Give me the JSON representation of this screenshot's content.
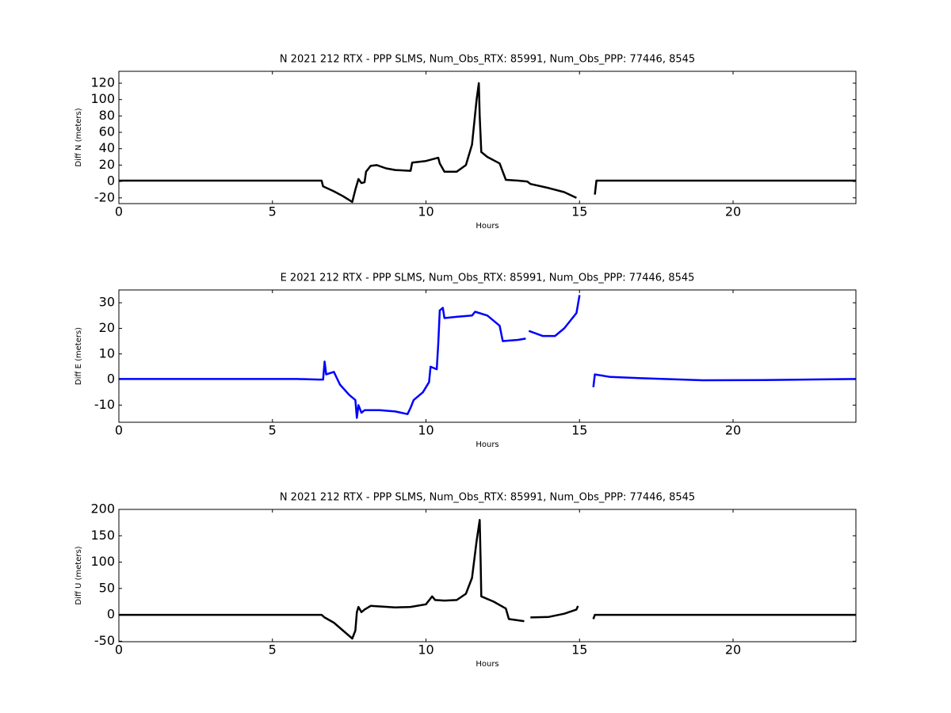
{
  "chart_data": [
    {
      "type": "line",
      "title": "N 2021 212 RTX - PPP  SLMS, Num_Obs_RTX: 85991, Num_Obs_PPP: 77446, 8545",
      "xlabel": "Hours",
      "ylabel": "Diff N (meters)",
      "color": "#000000",
      "xlim": [
        0,
        24
      ],
      "ylim": [
        -27,
        134.5
      ],
      "xticks": [
        0,
        5,
        10,
        15,
        20
      ],
      "yticks": [
        -20,
        0,
        20,
        40,
        60,
        80,
        100,
        120
      ],
      "x": [
        0,
        1,
        2,
        3,
        4,
        5,
        6,
        6.6,
        6.65,
        7.0,
        7.3,
        7.6,
        7.7,
        7.8,
        7.9,
        8.0,
        8.05,
        8.2,
        8.4,
        8.7,
        9.0,
        9.5,
        9.55,
        10.0,
        10.4,
        10.45,
        10.6,
        10.8,
        11.0,
        11.3,
        11.5,
        11.65,
        11.72,
        11.75,
        11.8,
        12.0,
        12.4,
        12.6,
        13.0,
        13.3,
        13.4,
        14.0,
        14.5,
        14.9,
        15.2,
        15.5,
        15.55,
        17,
        20,
        24
      ],
      "values": [
        1,
        1,
        1,
        1,
        1,
        1,
        1,
        1,
        -6,
        -12,
        -18,
        -25,
        -10,
        3,
        -2,
        -1,
        12,
        19,
        20,
        16,
        14,
        13,
        23,
        25,
        29,
        22,
        12,
        12,
        12,
        20,
        45,
        100,
        120,
        80,
        36,
        30,
        22,
        2,
        1,
        0,
        -3,
        -8,
        -13,
        -20,
        null,
        -16,
        1,
        1,
        1,
        1
      ]
    },
    {
      "type": "line",
      "title": "E 2021 212 RTX - PPP  SLMS, Num_Obs_RTX: 85991, Num_Obs_PPP: 77446, 8545",
      "xlabel": "Hours",
      "ylabel": "Diff E (meters)",
      "color": "#0000ff",
      "xlim": [
        0,
        24
      ],
      "ylim": [
        -16.7,
        35
      ],
      "xticks": [
        0,
        5,
        10,
        15,
        20
      ],
      "yticks": [
        -10,
        0,
        10,
        20,
        30
      ],
      "x": [
        0,
        2,
        4,
        5.8,
        6.5,
        6.65,
        6.7,
        6.75,
        7.0,
        7.2,
        7.5,
        7.7,
        7.75,
        7.8,
        7.9,
        8.0,
        8.5,
        9.0,
        9.4,
        9.5,
        9.6,
        9.9,
        10.1,
        10.15,
        10.35,
        10.4,
        10.45,
        10.55,
        10.6,
        11.0,
        11.5,
        11.6,
        12.0,
        12.4,
        12.5,
        13.0,
        13.25,
        13.3,
        13.35,
        13.8,
        14.2,
        14.5,
        14.9,
        15.0,
        15.2,
        15.45,
        15.5,
        16.0,
        17.0,
        19.0,
        21,
        24
      ],
      "values": [
        0.2,
        0.2,
        0.2,
        0.2,
        0,
        0,
        7,
        2,
        3,
        -2,
        -6,
        -8,
        -15,
        -10,
        -13,
        -12,
        -12,
        -12.5,
        -13.5,
        -11,
        -8,
        -5,
        -1,
        5,
        4,
        14,
        27,
        28,
        24,
        24.5,
        25,
        26.5,
        25,
        21,
        15,
        15.5,
        16,
        null,
        19,
        17,
        17,
        20,
        26,
        33,
        null,
        -3,
        2,
        1,
        0.5,
        -0.3,
        -0.2,
        0.2
      ]
    },
    {
      "type": "line",
      "title": "N 2021 212 RTX - PPP  SLMS, Num_Obs_RTX: 85991, Num_Obs_PPP: 77446, 8545",
      "xlabel": "Hours",
      "ylabel": "Diff U (meters)",
      "color": "#000000",
      "xlim": [
        0,
        24
      ],
      "ylim": [
        -51,
        200
      ],
      "xticks": [
        0,
        5,
        10,
        15,
        20
      ],
      "yticks": [
        -50,
        0,
        50,
        100,
        150,
        200
      ],
      "x": [
        0,
        2,
        4,
        6.6,
        6.7,
        7.0,
        7.3,
        7.6,
        7.7,
        7.75,
        7.8,
        7.9,
        8.0,
        8.2,
        9.0,
        9.5,
        10.0,
        10.2,
        10.3,
        10.6,
        11.0,
        11.3,
        11.5,
        11.65,
        11.75,
        11.78,
        11.8,
        12.2,
        12.6,
        12.7,
        13.2,
        13.3,
        13.4,
        14.0,
        14.5,
        14.9,
        14.95,
        15.2,
        15.45,
        15.5,
        18,
        24
      ],
      "values": [
        0,
        0,
        0,
        0,
        -5,
        -15,
        -30,
        -45,
        -30,
        5,
        15,
        5,
        10,
        17,
        14,
        15,
        20,
        35,
        28,
        27,
        28,
        40,
        70,
        140,
        180,
        100,
        35,
        25,
        12,
        -8,
        -12,
        null,
        -5,
        -4,
        2,
        10,
        17,
        null,
        -8,
        0,
        0,
        0
      ]
    }
  ]
}
